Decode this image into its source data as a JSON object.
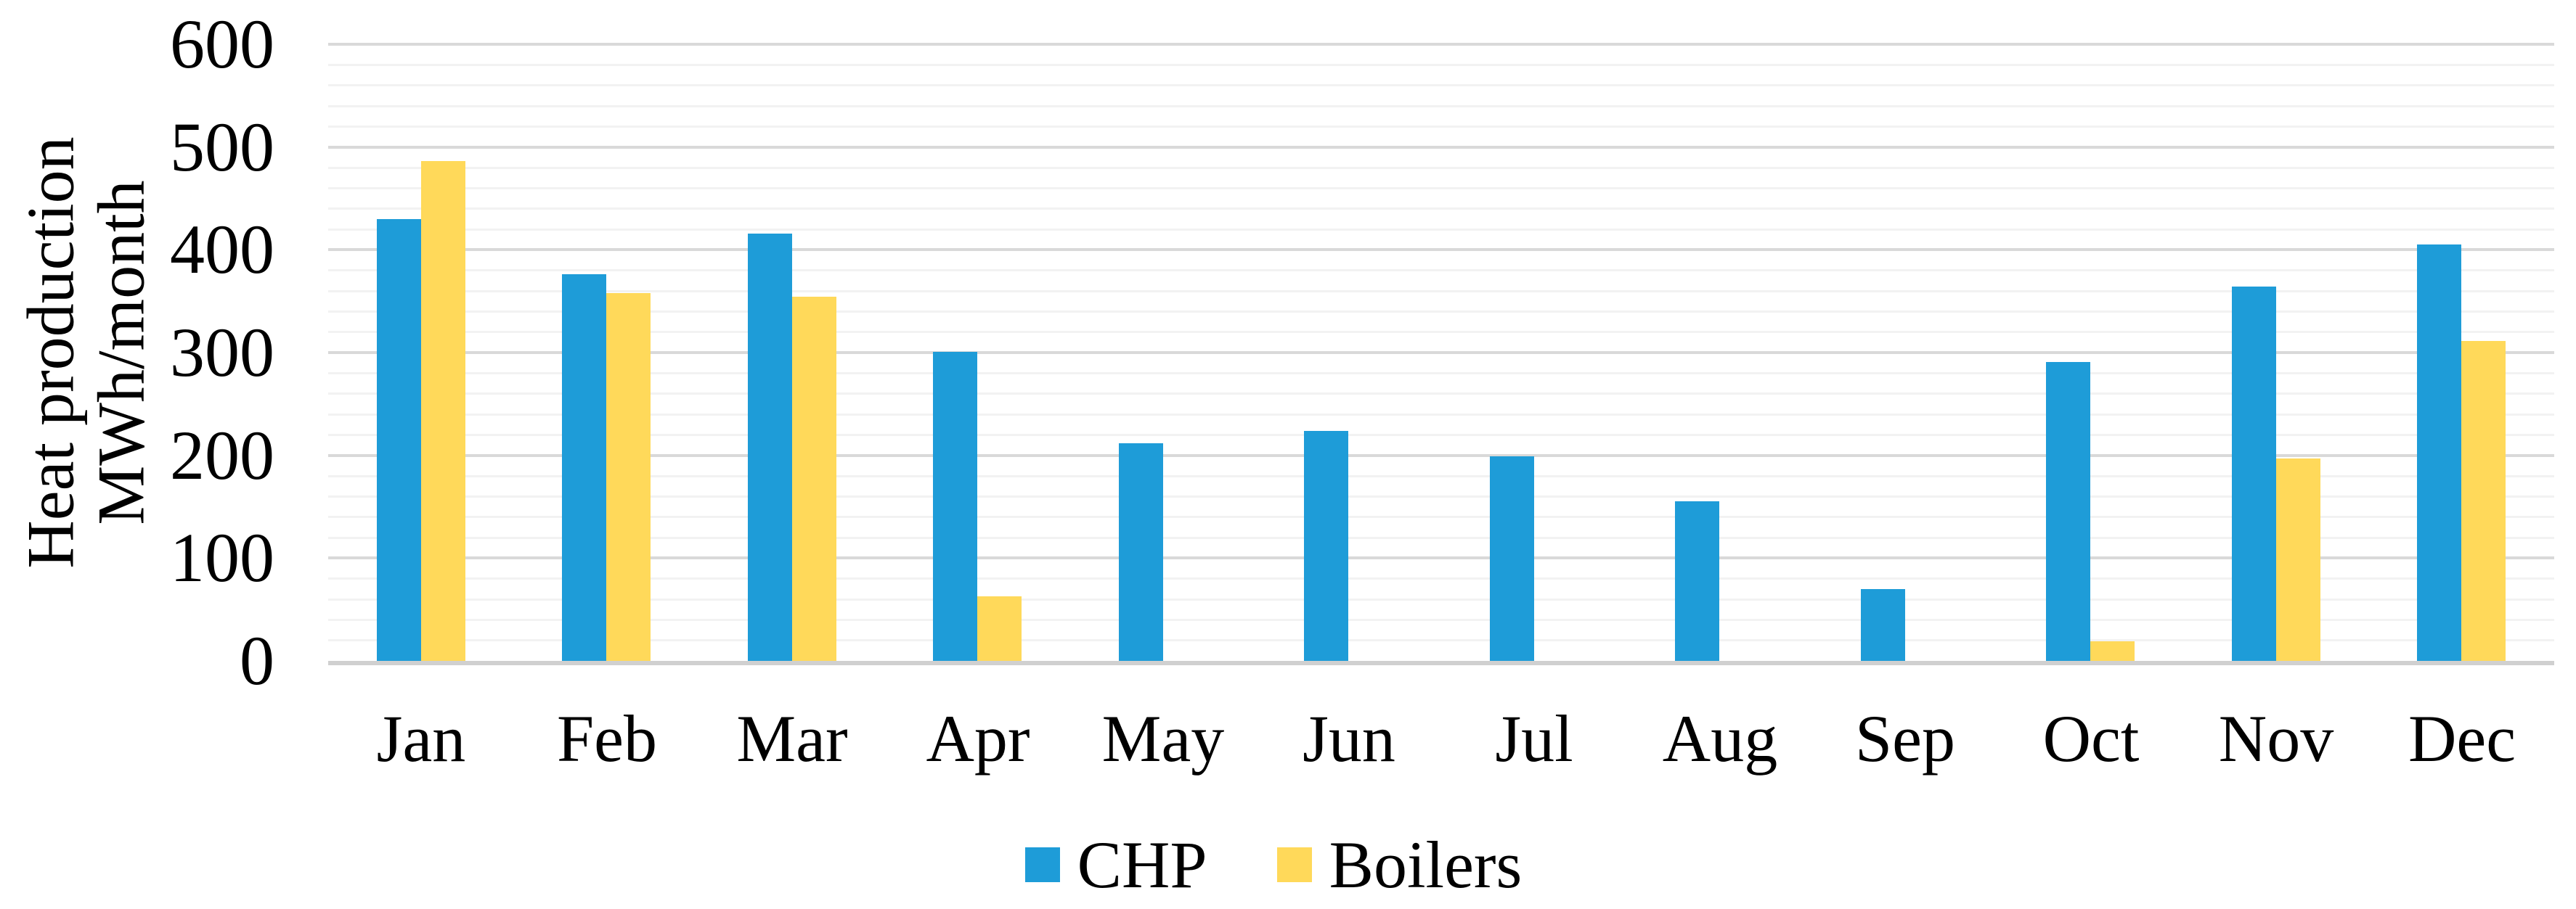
{
  "chart_data": {
    "type": "bar",
    "title": "",
    "xlabel": "",
    "ylabel": "Heat production\nMWh/month",
    "categories": [
      "Jan",
      "Feb",
      "Mar",
      "Apr",
      "May",
      "Jun",
      "Jul",
      "Aug",
      "Sep",
      "Oct",
      "Nov",
      "Dec"
    ],
    "series": [
      {
        "name": "CHP",
        "color": "#1E9CD8",
        "values": [
          430,
          376,
          416,
          301,
          212,
          224,
          199,
          155,
          70,
          291,
          364,
          405
        ]
      },
      {
        "name": "Boilers",
        "color": "#FFD95A",
        "values": [
          486,
          358,
          354,
          63,
          0,
          0,
          0,
          0,
          0,
          19,
          197,
          311
        ]
      }
    ],
    "ylim": [
      0,
      600
    ],
    "y_ticks": [
      0,
      100,
      200,
      300,
      400,
      500,
      600
    ],
    "minor_grid_step": 20,
    "major_grid_step": 100,
    "grid": "on",
    "legend_position": "bottom",
    "colors": {
      "grid_minor": "#f2f2f2",
      "grid_major": "#d9d9d9",
      "axis_line": "#d0d0d0",
      "text": "#000000"
    }
  }
}
